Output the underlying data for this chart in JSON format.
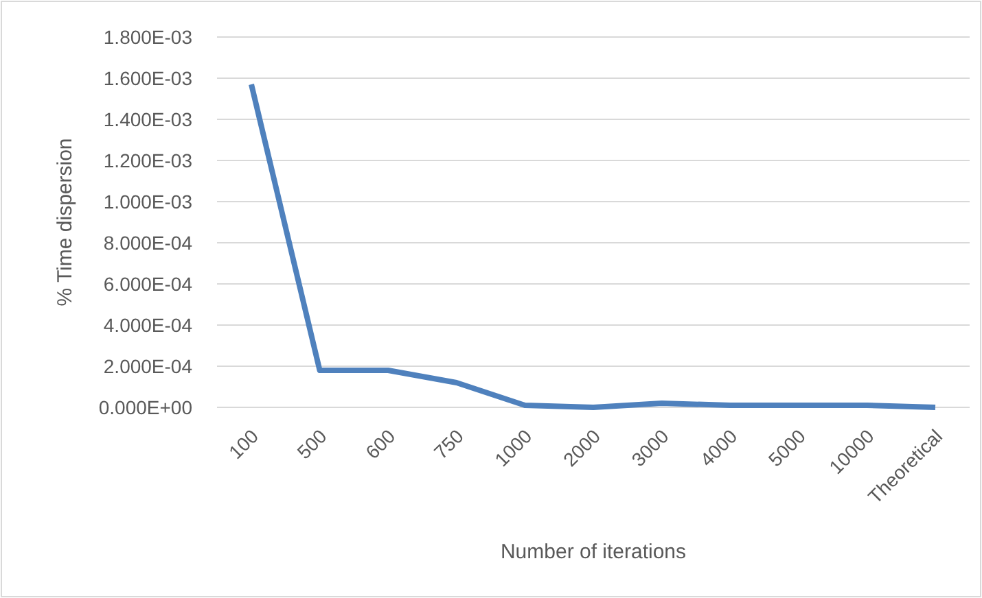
{
  "chart_data": {
    "type": "line",
    "xlabel": "Number of iterations",
    "ylabel": "% Time dispersion",
    "categories": [
      "100",
      "500",
      "600",
      "750",
      "1000",
      "2000",
      "3000",
      "4000",
      "5000",
      "10000",
      "Theoretical"
    ],
    "series": [
      {
        "color": "#4f81bd",
        "values": [
          0.00157,
          0.00018,
          0.00018,
          0.00012,
          1e-05,
          0,
          2e-05,
          1e-05,
          1e-05,
          1e-05,
          0
        ]
      }
    ],
    "ylim": [
      0,
      0.0018
    ],
    "yticks": [
      {
        "value": 0,
        "label": "0.000E+00"
      },
      {
        "value": 0.0002,
        "label": "2.000E-04"
      },
      {
        "value": 0.0004,
        "label": "4.000E-04"
      },
      {
        "value": 0.0006,
        "label": "6.000E-04"
      },
      {
        "value": 0.0008,
        "label": "8.000E-04"
      },
      {
        "value": 0.001,
        "label": "1.000E-03"
      },
      {
        "value": 0.0012,
        "label": "1.200E-03"
      },
      {
        "value": 0.0014,
        "label": "1.400E-03"
      },
      {
        "value": 0.0016,
        "label": "1.600E-03"
      },
      {
        "value": 0.0018,
        "label": "1.800E-03"
      }
    ],
    "grid": "y",
    "marker": "none",
    "line_style": "solid"
  }
}
